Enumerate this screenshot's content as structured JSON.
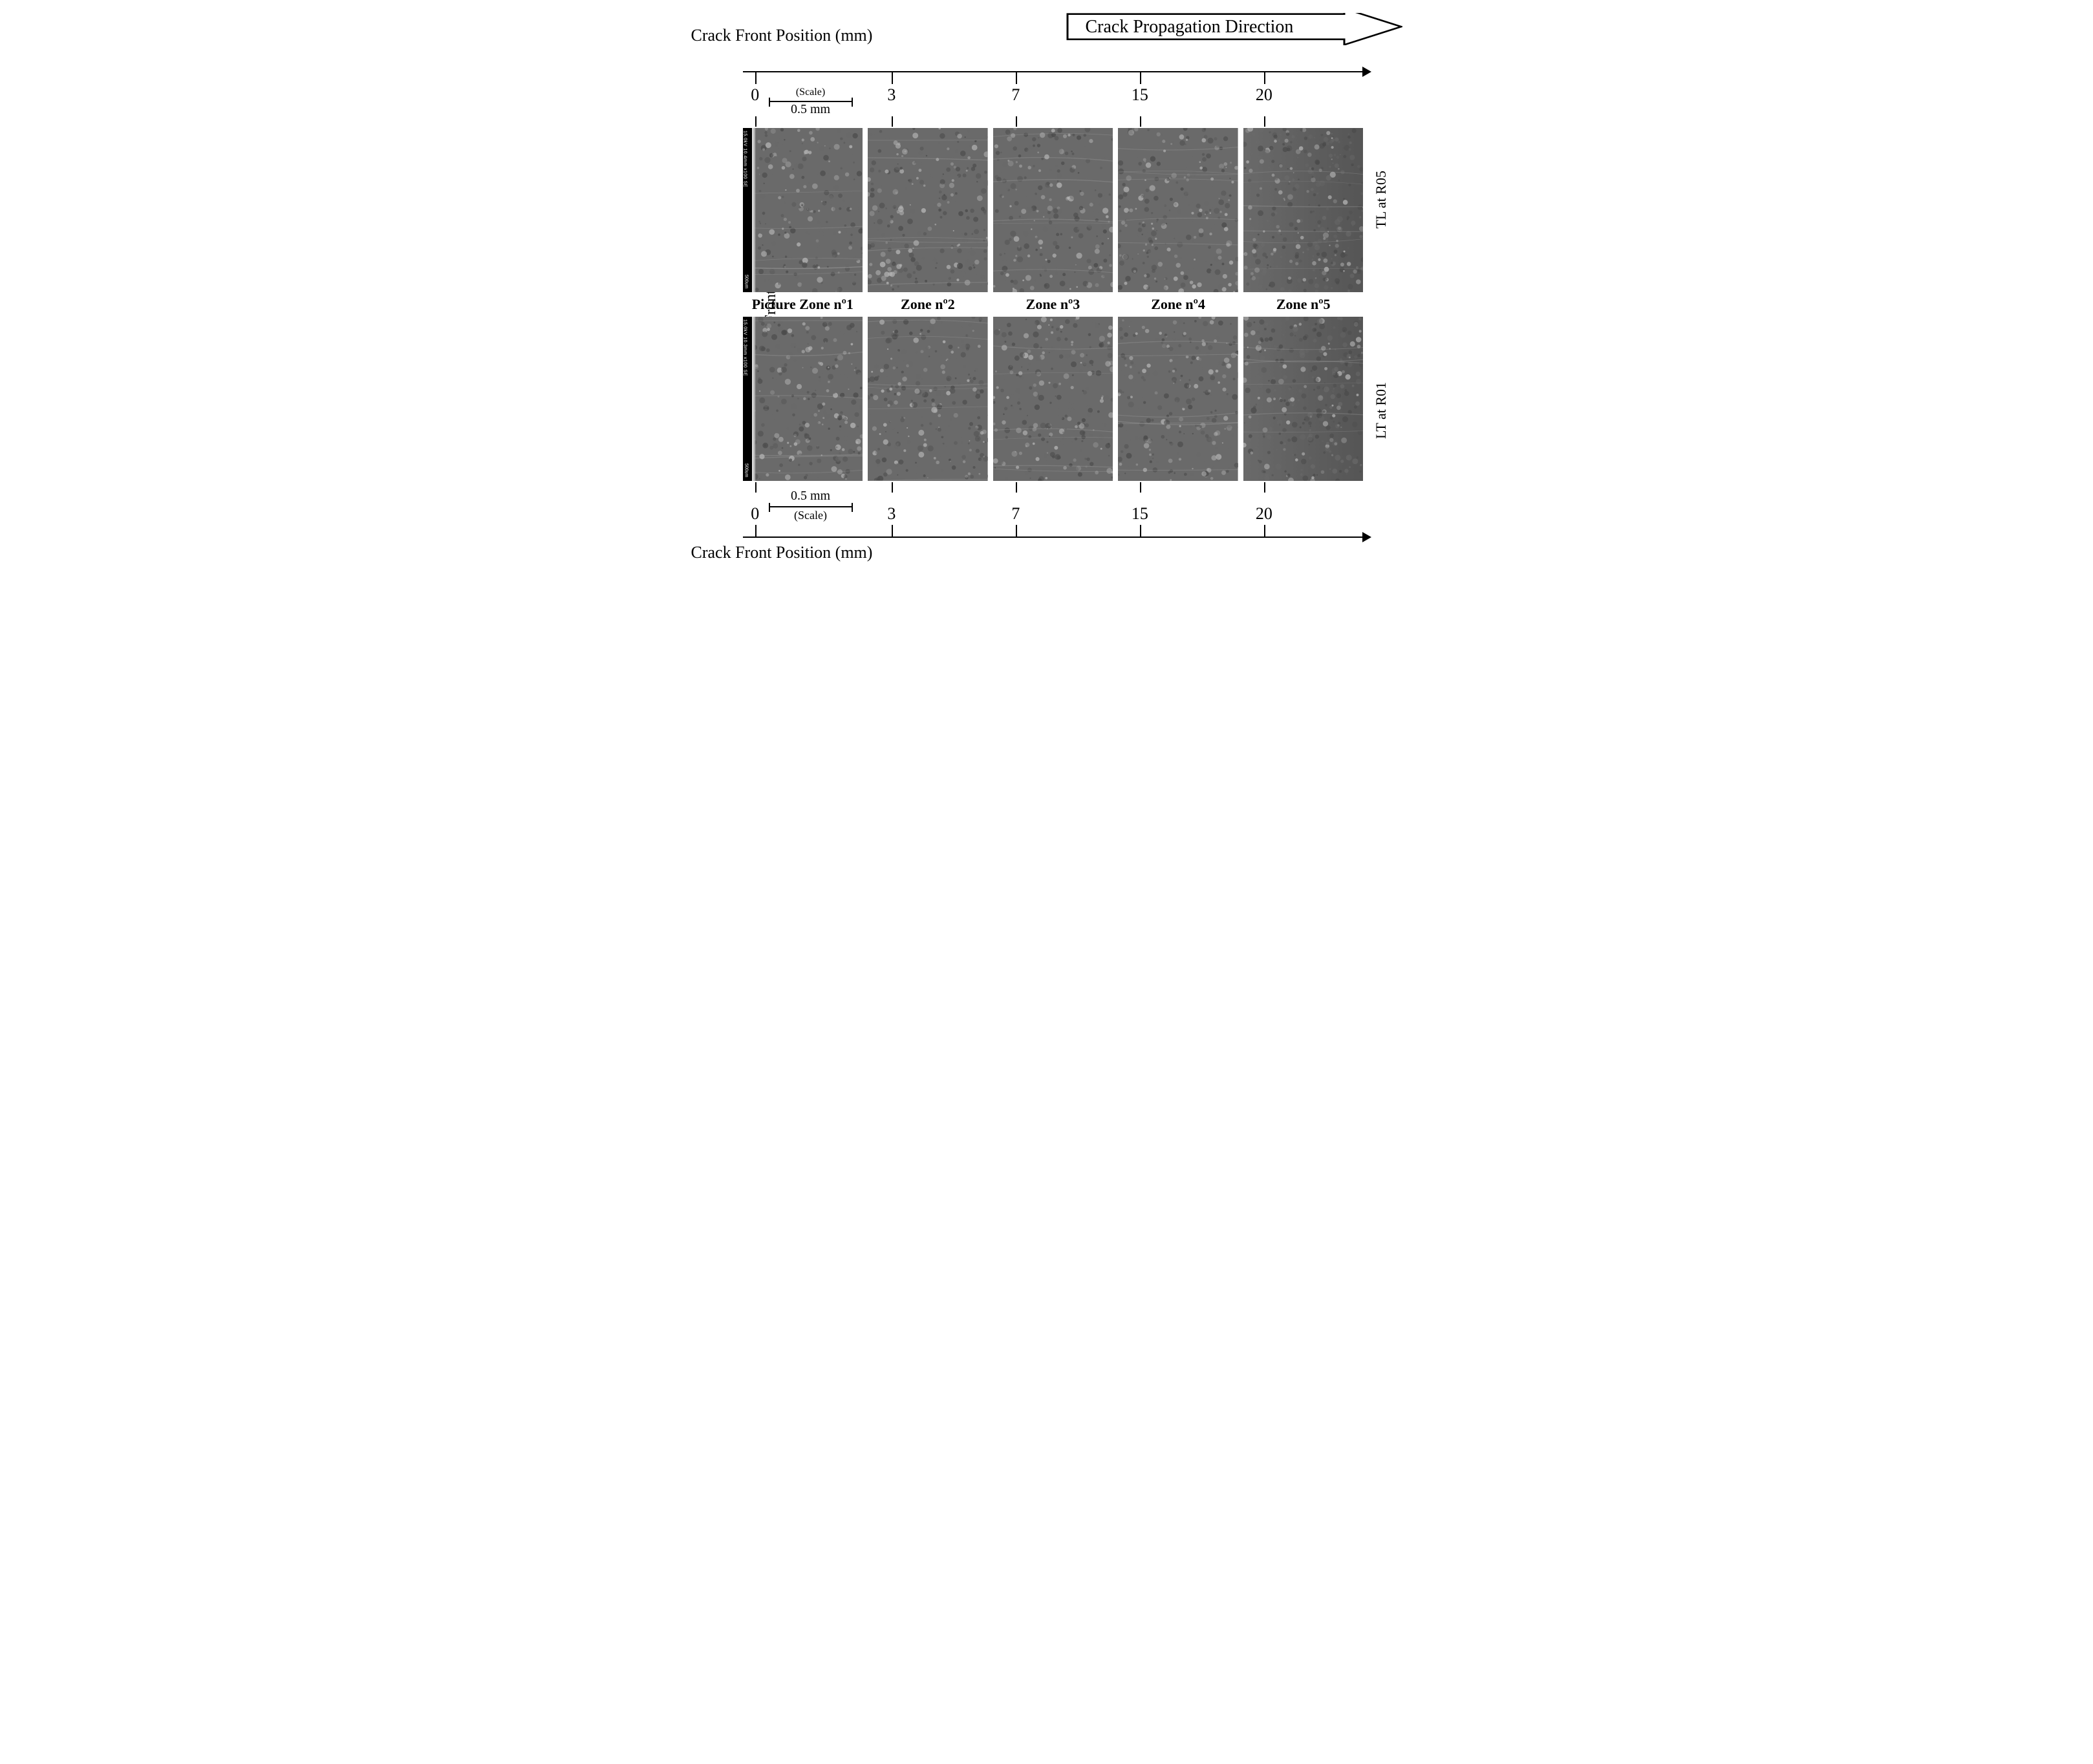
{
  "labels": {
    "propagation_direction": "Crack Propagation Direction",
    "axis_title": "Crack Front Position (mm)",
    "crack_front_y": "Crack Front (x100)",
    "scale_caption": "(Scale)",
    "scale_value": "0.5 mm"
  },
  "axis": {
    "ticks": [
      {
        "value": "0",
        "pos_pct": 2
      },
      {
        "value": "3",
        "pos_pct": 24
      },
      {
        "value": "7",
        "pos_pct": 44
      },
      {
        "value": "15",
        "pos_pct": 64
      },
      {
        "value": "20",
        "pos_pct": 84
      }
    ]
  },
  "zones": [
    {
      "label": "Picture Zone nº1"
    },
    {
      "label": "Zone nº2"
    },
    {
      "label": "Zone nº3"
    },
    {
      "label": "Zone nº4"
    },
    {
      "label": "Zone nº5"
    }
  ],
  "rows": [
    {
      "id": "TL_R05",
      "label": "TL at R05",
      "info_strip": "15.0kV 10.4mm x100 SE",
      "info_scale": "500um",
      "has_scale_strip_first_tile": true
    },
    {
      "id": "LT_R01",
      "label": "LT at R01",
      "info_strip": "15.0kV 10.3mm x100 SE",
      "info_scale": "500um",
      "has_scale_strip_first_tile": true
    }
  ],
  "style": {
    "background": "#ffffff",
    "text_color": "#000000",
    "sem_base_gray": "#6a6a6a",
    "sem_speckle_light": "#b8b8b8",
    "sem_speckle_dark": "#4a4a4a",
    "font_family": "Times New Roman",
    "tile_aspect": 0.73,
    "tile_count_per_row": 5,
    "magnification": "x100"
  }
}
